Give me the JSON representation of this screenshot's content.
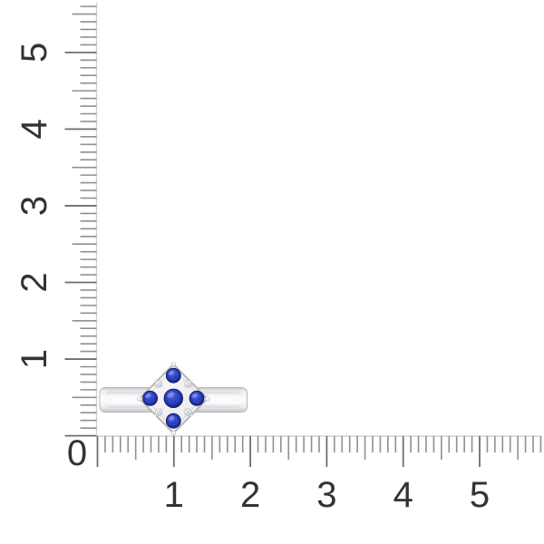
{
  "image": {
    "alt": "Ring with blue gemstones photographed against centimeter rulers",
    "background": "#ffffff"
  },
  "rulers": {
    "origin_label": "0",
    "label_color": "#333333",
    "tick_color": "#909090",
    "major_tick_color": "#6e6e6e",
    "line_color": "#d3d3d3",
    "vertical": {
      "labels": [
        "1",
        "2",
        "3",
        "4",
        "5"
      ],
      "minor_tick_count": 57,
      "minor_per_major": 10
    },
    "horizontal": {
      "labels": [
        "1",
        "2",
        "3",
        "4",
        "5"
      ],
      "minor_tick_count": 59,
      "minor_per_major": 10
    }
  },
  "ring": {
    "blue_stone_count": 5,
    "white_stone_count": 4,
    "colors": {
      "metal_edge": "#b6b6bc",
      "metal_bright": "#fcfcfd",
      "metal_mid": "#efeff2",
      "metal_shade": "#c3c3c9",
      "inner_face_light": "#fafafb",
      "inner_face_shade": "#d6d6da",
      "head_inner_line": "#d8d8dc",
      "sapphire_light": "#5971e3",
      "sapphire_core": "#2b41c4",
      "sapphire_deep": "#1b2a94",
      "sapphire_rim": "#0d164f",
      "diamond_white": "#ffffff",
      "diamond_grey": "#e3e3e8",
      "diamond_dark": "#9c9ca6"
    }
  }
}
